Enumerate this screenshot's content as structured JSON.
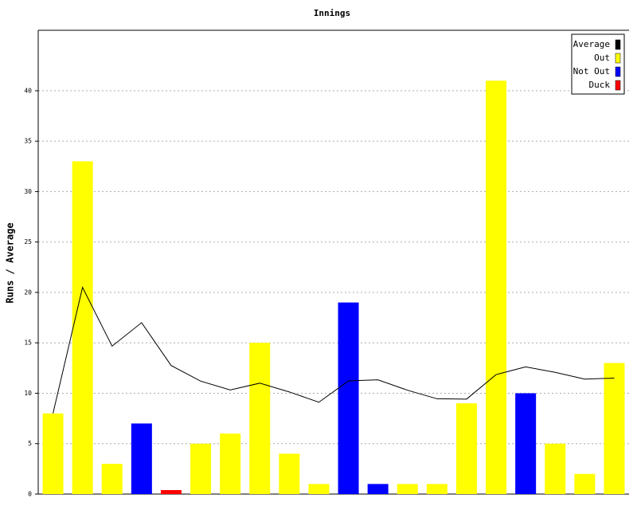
{
  "chart_data": {
    "type": "bar",
    "title": "Innings",
    "y_label": "Runs / Average",
    "ylim": [
      0,
      46
    ],
    "yticks": [
      0,
      5,
      10,
      15,
      20,
      25,
      30,
      35,
      40
    ],
    "grid": true,
    "legend": "top-right",
    "series": [
      {
        "name": "Average",
        "color": "#000000",
        "type": "line",
        "values": [
          8,
          20.5,
          14.67,
          17,
          12.75,
          11.2,
          10.33,
          11,
          10.13,
          9.11,
          11.22,
          11.33,
          10.3,
          9.45,
          9.42,
          11.85,
          12.62,
          12.07,
          11.4,
          11.5
        ]
      },
      {
        "name": "Out",
        "color": "#ffff00",
        "values": [
          8,
          33,
          3,
          null,
          null,
          5,
          6,
          15,
          4,
          1,
          null,
          null,
          1,
          1,
          9,
          41,
          null,
          5,
          2,
          13
        ]
      },
      {
        "name": "Not Out",
        "color": "#0000ff",
        "values": [
          null,
          null,
          null,
          7,
          null,
          null,
          null,
          null,
          null,
          null,
          19,
          1,
          null,
          null,
          null,
          null,
          10,
          null,
          null,
          null
        ]
      },
      {
        "name": "Duck",
        "color": "#ff0000",
        "values": [
          null,
          null,
          null,
          null,
          0,
          null,
          null,
          null,
          null,
          null,
          null,
          null,
          null,
          null,
          null,
          null,
          null,
          null,
          null,
          null
        ]
      }
    ]
  }
}
